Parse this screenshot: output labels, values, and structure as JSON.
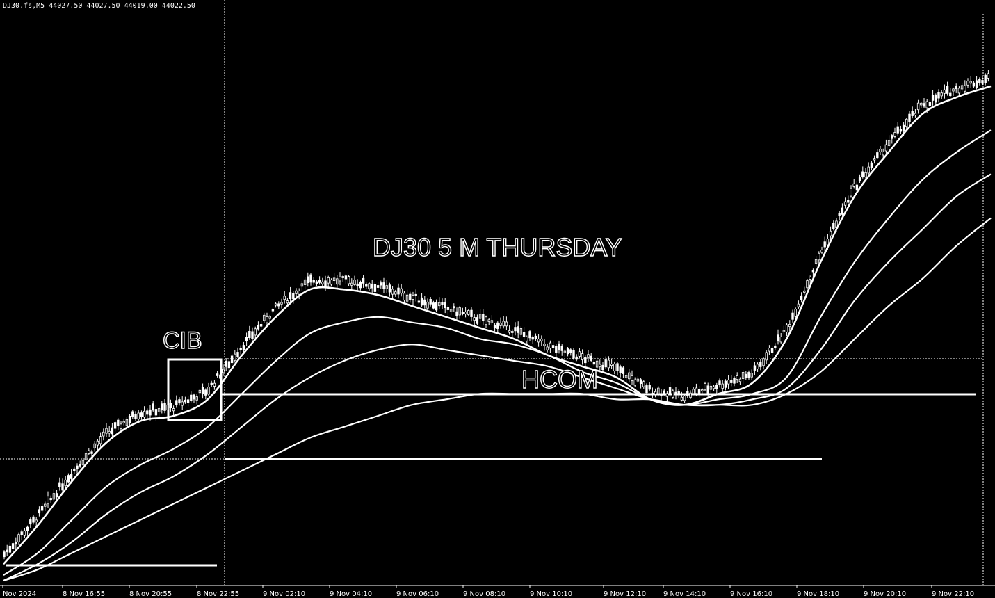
{
  "header": {
    "symbol_line": "DJ30.fs,M5  44027.50 44027.50 44019.00 44022.50"
  },
  "colors": {
    "background": "#000000",
    "foreground": "#ffffff"
  },
  "chart_data": {
    "type": "line",
    "title": "DJ30 5 M THURSDAY",
    "annotations": [
      "CIB",
      "HCOM"
    ],
    "x_tick_labels": [
      "Nov 2024",
      "8 Nov 16:55",
      "8 Nov 20:55",
      "8 Nov 22:55",
      "9 Nov 02:10",
      "9 Nov 04:10",
      "9 Nov 06:10",
      "9 Nov 08:10",
      "9 Nov 10:10",
      "9 Nov 12:10",
      "9 Nov 14:10",
      "9 Nov 16:10",
      "9 Nov 18:10",
      "9 Nov 20:10",
      "9 Nov 22:10"
    ],
    "series": [
      {
        "values": [
          3,
          10,
          18,
          25,
          29,
          30,
          33,
          41,
          48,
          53,
          53,
          52,
          50,
          48,
          46,
          44,
          41,
          39,
          37,
          33,
          32,
          34,
          36,
          44,
          58,
          70,
          78,
          85,
          88,
          90
        ]
      },
      {
        "values": [
          1,
          5,
          11,
          17,
          21,
          24,
          28,
          34,
          40,
          45,
          47,
          48,
          47,
          46,
          44,
          43,
          41,
          38,
          36,
          33,
          32,
          33,
          34,
          37,
          48,
          58,
          66,
          73,
          78,
          82
        ]
      },
      {
        "values": [
          0,
          3,
          7,
          12,
          16,
          19,
          23,
          28,
          33,
          37,
          40,
          42,
          43,
          42,
          41,
          40,
          39,
          37,
          35,
          33,
          32,
          32,
          33,
          35,
          42,
          51,
          58,
          64,
          70,
          74
        ]
      },
      {
        "values": [
          0,
          2,
          5,
          8,
          11,
          14,
          17,
          20,
          23,
          26,
          28,
          30,
          32,
          33,
          34,
          34,
          34,
          34,
          33,
          33,
          32,
          32,
          32,
          34,
          38,
          44,
          50,
          55,
          61,
          66
        ]
      }
    ]
  }
}
